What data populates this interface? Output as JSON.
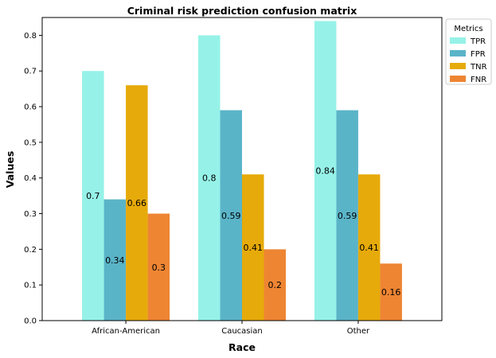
{
  "chart_data": {
    "type": "bar",
    "title": "Criminal risk prediction confusion matrix",
    "xlabel": "Race",
    "ylabel": "Values",
    "categories": [
      "African-American",
      "Caucasian",
      "Other"
    ],
    "series": [
      {
        "name": "TPR",
        "values": [
          0.7,
          0.8,
          0.84
        ],
        "color": "#96f2e8"
      },
      {
        "name": "FPR",
        "values": [
          0.34,
          0.59,
          0.59
        ],
        "color": "#5ab4c8"
      },
      {
        "name": "TNR",
        "values": [
          0.66,
          0.41,
          0.41
        ],
        "color": "#e6aa0a"
      },
      {
        "name": "FNR",
        "values": [
          0.3,
          0.2,
          0.16
        ],
        "color": "#ee8533"
      }
    ],
    "ylim": [
      0,
      0.85
    ],
    "yticks": [
      0.0,
      0.1,
      0.2,
      0.3,
      0.4,
      0.5,
      0.6,
      0.7,
      0.8
    ],
    "ytick_labels": [
      "0.0",
      "0.1",
      "0.2",
      "0.3",
      "0.4",
      "0.5",
      "0.6",
      "0.7",
      "0.8"
    ],
    "legend_title": "Metrics",
    "legend_position": "outside-top-right",
    "grid": false
  }
}
